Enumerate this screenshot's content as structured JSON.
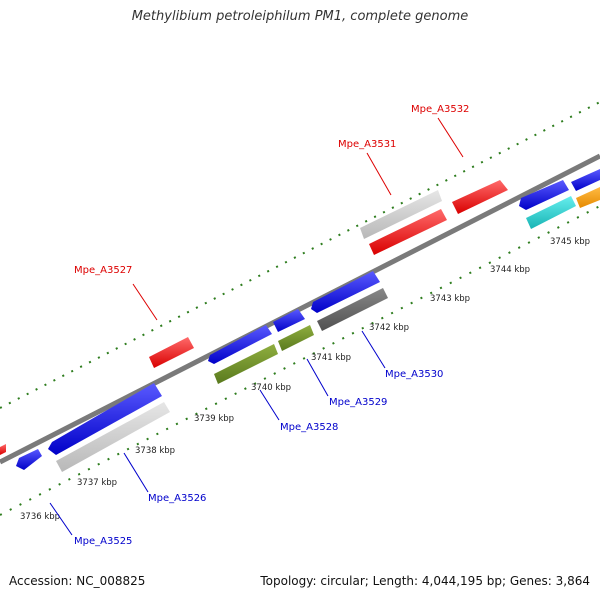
{
  "title": "Methylibium petroleiphilum PM1, complete genome",
  "footer": {
    "accession": "Accession: NC_008825",
    "summary": "Topology: circular; Length: 4,044,195 bp; Genes: 3,864"
  },
  "colors": {
    "backbone": "#7a7a7a",
    "ticks": "#2e7d1e",
    "label_forward": "#dd0000",
    "label_reverse": "#0000cc"
  },
  "kbp_labels": [
    "3736 kbp",
    "3737 kbp",
    "3738 kbp",
    "3739 kbp",
    "3740 kbp",
    "3741 kbp",
    "3742 kbp",
    "3743 kbp",
    "3744 kbp",
    "3745 kbp"
  ],
  "gene_labels": [
    {
      "name": "Mpe_A3525",
      "strand": "reverse"
    },
    {
      "name": "Mpe_A3526",
      "strand": "reverse"
    },
    {
      "name": "Mpe_A3527",
      "strand": "forward"
    },
    {
      "name": "Mpe_A3528",
      "strand": "reverse"
    },
    {
      "name": "Mpe_A3529",
      "strand": "reverse"
    },
    {
      "name": "Mpe_A3530",
      "strand": "reverse"
    },
    {
      "name": "Mpe_A3531",
      "strand": "forward"
    },
    {
      "name": "Mpe_A3532",
      "strand": "forward"
    }
  ],
  "feature_colors": [
    "#ee1111",
    "#1a1add",
    "#cccccc",
    "#6b8e23",
    "#666666",
    "#22cccc",
    "#ff9900"
  ]
}
